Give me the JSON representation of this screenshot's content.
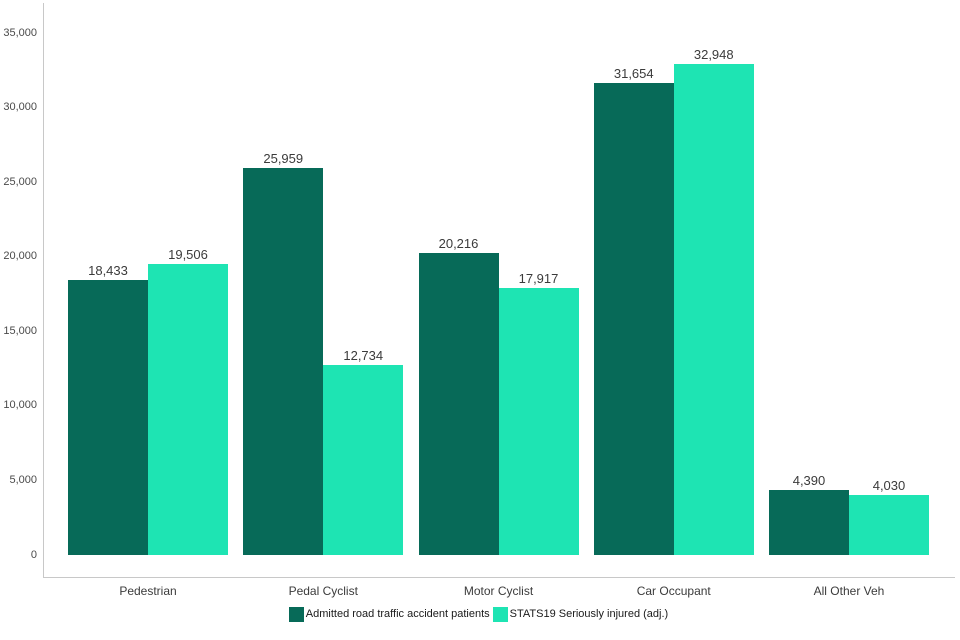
{
  "chart_data": {
    "type": "bar",
    "title": "",
    "xlabel": "",
    "ylabel": "",
    "categories": [
      "Pedestrian",
      "Pedal Cyclist",
      "Motor Cyclist",
      "Car Occupant",
      "All Other Veh"
    ],
    "series": [
      {
        "name": "Admitted road traffic accident patients",
        "color": "#076a58",
        "values": [
          18433,
          25959,
          20216,
          31654,
          4390
        ],
        "value_labels": [
          "18,433",
          "25,959",
          "20,216",
          "31,654",
          "4,390"
        ]
      },
      {
        "name": "STATS19 Seriously injured (adj.)",
        "color": "#1ee4b3",
        "values": [
          19506,
          12734,
          17917,
          32948,
          4030
        ],
        "value_labels": [
          "19,506",
          "12,734",
          "17,917",
          "32,948",
          "4,030"
        ]
      }
    ],
    "ylim": [
      0,
      35000
    ],
    "ytick_step": 5000,
    "ytick_labels": [
      "0",
      "5,000",
      "10,000",
      "15,000",
      "20,000",
      "25,000",
      "30,000",
      "35,000"
    ],
    "grid": false,
    "legend_position": "bottom",
    "axis_color": "#c8c8c8"
  }
}
